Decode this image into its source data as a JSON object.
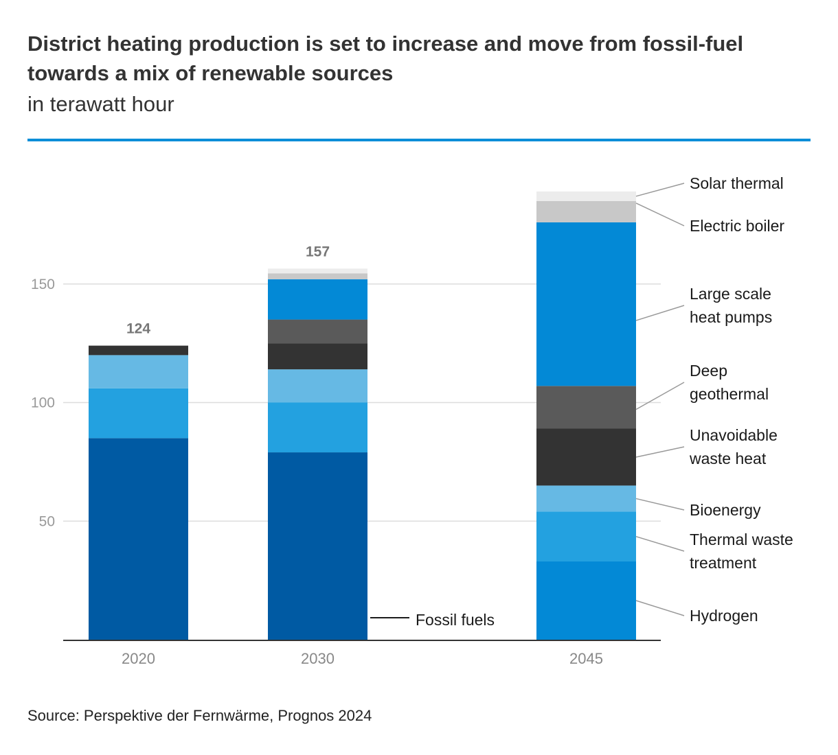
{
  "header": {
    "title": "District heating production is set to increase and move from fossil-fuel towards a mix of renewable sources",
    "subtitle": "in terawatt hour"
  },
  "footer": {
    "source": "Source: Perspektive der Fernwärme, Prognos 2024"
  },
  "colors": {
    "Fossil fuels": "#005aa3",
    "Hydrogen": "#0389d6",
    "Thermal waste treatment": "#23a1e0",
    "Bioenergy": "#66b9e4",
    "Unavoidable waste heat": "#333333",
    "Deep geothermal": "#5a5a5a",
    "Large scale heat pumps": "#0389d6",
    "Electric boiler": "#c8c8c8",
    "Solar thermal": "#ececec",
    "grid": "#dddddd",
    "axis": "#333333",
    "tick_text": "#999999",
    "total_text": "#777777",
    "leader": "#999999"
  },
  "chart_data": {
    "type": "bar",
    "stacked": true,
    "title": "District heating production is set to increase and move from fossil-fuel towards a mix of renewable sources",
    "ylabel": "in terawatt hour",
    "ylim": [
      0,
      190
    ],
    "yticks": [
      50,
      100,
      150
    ],
    "grid": true,
    "categories": [
      "2020",
      "2030",
      "2045"
    ],
    "totals": [
      124,
      157,
      null
    ],
    "series": [
      {
        "name": "Fossil fuels",
        "values": [
          85,
          79,
          0
        ]
      },
      {
        "name": "Hydrogen",
        "values": [
          0,
          0,
          33
        ]
      },
      {
        "name": "Thermal waste treatment",
        "values": [
          21,
          21,
          21
        ]
      },
      {
        "name": "Bioenergy",
        "values": [
          14,
          14,
          11
        ]
      },
      {
        "name": "Unavoidable waste heat",
        "values": [
          4,
          11,
          24
        ]
      },
      {
        "name": "Deep geothermal",
        "values": [
          0,
          10,
          18
        ]
      },
      {
        "name": "Large scale heat pumps",
        "values": [
          0,
          17,
          69
        ]
      },
      {
        "name": "Electric boiler",
        "values": [
          0,
          2.5,
          9
        ]
      },
      {
        "name": "Solar thermal",
        "values": [
          0,
          2,
          4
        ]
      }
    ],
    "legend": [
      {
        "series": "Solar thermal",
        "lines": [
          "Solar thermal"
        ]
      },
      {
        "series": "Electric boiler",
        "lines": [
          "Electric boiler"
        ]
      },
      {
        "series": "Large scale heat pumps",
        "lines": [
          "Large scale",
          "heat pumps"
        ]
      },
      {
        "series": "Deep geothermal",
        "lines": [
          "Deep",
          "geothermal"
        ]
      },
      {
        "series": "Unavoidable waste heat",
        "lines": [
          "Unavoidable",
          "waste heat"
        ]
      },
      {
        "series": "Bioenergy",
        "lines": [
          "Bioenergy"
        ]
      },
      {
        "series": "Thermal waste treatment",
        "lines": [
          "Thermal waste",
          "treatment"
        ]
      },
      {
        "series": "Hydrogen",
        "lines": [
          "Hydrogen"
        ]
      }
    ],
    "inline_label": {
      "series": "Fossil fuels",
      "text": "Fossil fuels"
    }
  }
}
